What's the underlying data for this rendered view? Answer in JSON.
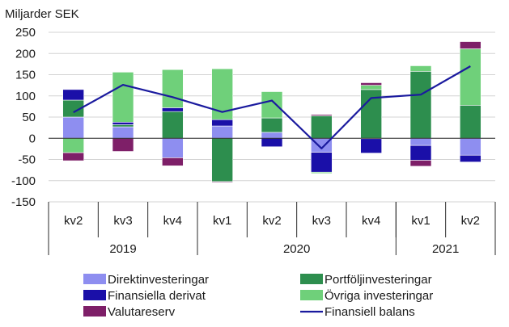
{
  "chart_data": {
    "type": "bar",
    "stacked": true,
    "unit_label": "Miljarder SEK",
    "ylim": [
      -150,
      250
    ],
    "yticks": [
      250,
      200,
      150,
      100,
      50,
      0,
      -50,
      -100,
      -150
    ],
    "categories": [
      "kv2",
      "kv3",
      "kv4",
      "kv1",
      "kv2",
      "kv3",
      "kv4",
      "kv1",
      "kv2"
    ],
    "years": [
      {
        "label": "2019",
        "count": 3
      },
      {
        "label": "2020",
        "count": 4
      },
      {
        "label": "2021",
        "count": 2
      }
    ],
    "series": [
      {
        "name": "Direktinvesteringar",
        "color": "#8e8ef0",
        "values": [
          50,
          27,
          -46,
          29,
          14,
          -33,
          -1,
          -17,
          -40
        ]
      },
      {
        "name": "Portföljinvesteringar",
        "color": "#2d8e4e",
        "values": [
          40,
          5,
          63,
          -102,
          34,
          53,
          115,
          158,
          78
        ]
      },
      {
        "name": "Finansiella derivat",
        "color": "#1a0fa8",
        "values": [
          25,
          6,
          9,
          15,
          -20,
          -47,
          -34,
          -35,
          -16
        ]
      },
      {
        "name": "Övriga investeringar",
        "color": "#6fd07a",
        "values": [
          -34,
          118,
          90,
          120,
          62,
          -3,
          10,
          13,
          133
        ]
      },
      {
        "name": "Valutareserv",
        "color": "#7e1f68",
        "values": [
          -19,
          -31,
          -19,
          -2,
          0,
          3,
          6,
          -14,
          17
        ]
      }
    ],
    "line": {
      "name": "Finansiell balans",
      "color": "#1a1a9e",
      "values": [
        61,
        126,
        97,
        62,
        89,
        -24,
        95,
        103,
        170
      ]
    },
    "legend_layout": [
      [
        "Direktinvesteringar",
        "Portföljinvesteringar"
      ],
      [
        "Finansiella derivat",
        "Övriga investeringar"
      ],
      [
        "Valutareserv",
        "Finansiell balans"
      ]
    ]
  }
}
